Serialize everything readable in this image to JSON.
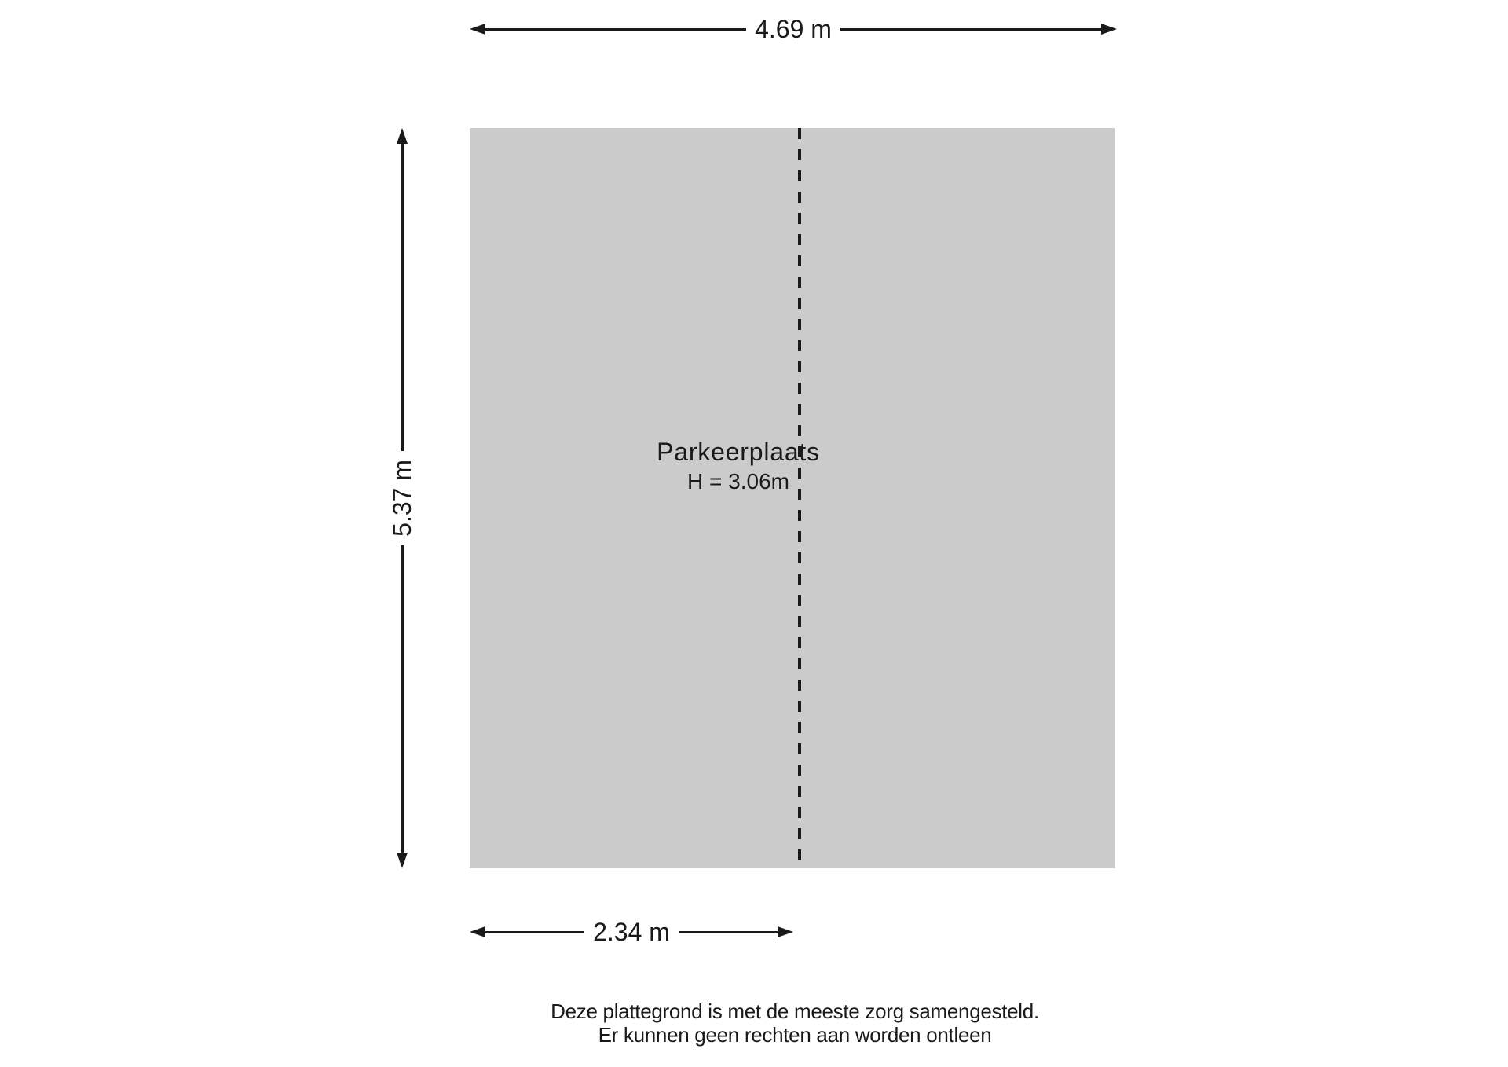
{
  "floorplan": {
    "room": {
      "label": "Parkeerplaats",
      "ceiling_height": "H = 3.06m",
      "fill_color": "#cbcbcb"
    },
    "dimensions": {
      "width_total": "4.69 m",
      "depth": "5.37 m",
      "width_section": "2.34 m"
    },
    "line_color": "#1a1a1a",
    "disclaimer": {
      "line1": "Deze plattegrond is met de meeste zorg samengesteld.",
      "line2": "Er kunnen geen rechten aan worden ontleen"
    }
  }
}
